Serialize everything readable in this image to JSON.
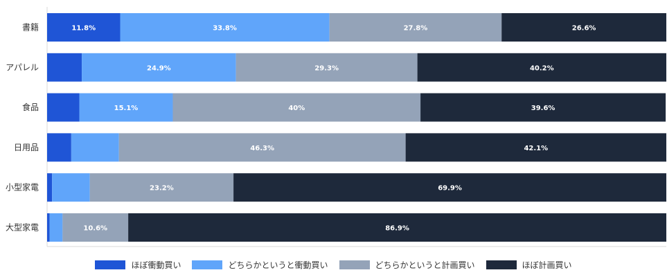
{
  "chart_data": {
    "type": "bar",
    "orientation": "horizontal",
    "stacked": true,
    "normalized_percent": true,
    "categories": [
      "書籍",
      "アパレル",
      "食品",
      "日用品",
      "小型家電",
      "大型家電"
    ],
    "series": [
      {
        "name": "ほぼ衝動買い",
        "color": "#1f55d6",
        "values": [
          11.8,
          5.6,
          5.2,
          3.9,
          0.8,
          0.4
        ]
      },
      {
        "name": "どちらかというと衝動買い",
        "color": "#60a5fa",
        "values": [
          33.8,
          24.9,
          15.1,
          7.7,
          6.1,
          2.1
        ]
      },
      {
        "name": "どちらかというと計画買い",
        "color": "#94a3b8",
        "values": [
          27.8,
          29.3,
          40,
          46.3,
          23.2,
          10.6
        ]
      },
      {
        "name": "ほぼ計画買い",
        "color": "#1e293b",
        "values": [
          26.6,
          40.2,
          39.6,
          42.1,
          69.9,
          86.9
        ]
      }
    ],
    "segment_labels": [
      [
        "11.8%",
        "33.8%",
        "27.8%",
        "26.6%"
      ],
      [
        "",
        "24.9%",
        "29.3%",
        "40.2%"
      ],
      [
        "",
        "15.1%",
        "40%",
        "39.6%"
      ],
      [
        "",
        "",
        "46.3%",
        "42.1%"
      ],
      [
        "",
        "",
        "23.2%",
        "69.9%"
      ],
      [
        "",
        "",
        "10.6%",
        "86.9%"
      ]
    ],
    "xlim": [
      0,
      100
    ],
    "legend_position": "bottom"
  }
}
